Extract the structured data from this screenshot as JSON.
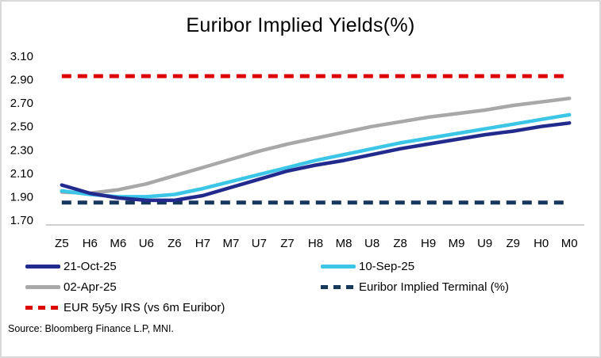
{
  "chart_data": {
    "type": "line",
    "title": "Euribor Implied Yields(%)",
    "xlabel": "",
    "ylabel": "",
    "ylim": [
      1.7,
      3.1
    ],
    "y_ticks": [
      "3.10",
      "2.90",
      "2.70",
      "2.50",
      "2.30",
      "2.10",
      "1.90",
      "1.70"
    ],
    "x_categories": [
      "Z5",
      "H6",
      "M6",
      "U6",
      "Z6",
      "H7",
      "M7",
      "U7",
      "Z7",
      "H8",
      "M8",
      "U8",
      "Z8",
      "H9",
      "M9",
      "U9",
      "Z9",
      "H0",
      "M0"
    ],
    "grid": false,
    "legend_position": "bottom",
    "series": [
      {
        "name": "21-Oct-25",
        "color": "#222B8D",
        "style": "solid",
        "values": [
          2.0,
          1.93,
          1.89,
          1.87,
          1.87,
          1.91,
          1.98,
          2.05,
          2.12,
          2.17,
          2.21,
          2.26,
          2.31,
          2.35,
          2.39,
          2.43,
          2.46,
          2.5,
          2.53
        ]
      },
      {
        "name": "10-Sep-25",
        "color": "#3BC6E8",
        "style": "solid",
        "values": [
          1.95,
          1.92,
          1.9,
          1.9,
          1.92,
          1.97,
          2.03,
          2.09,
          2.15,
          2.21,
          2.26,
          2.31,
          2.36,
          2.4,
          2.44,
          2.48,
          2.52,
          2.56,
          2.6
        ]
      },
      {
        "name": "02-Apr-25",
        "color": "#A8A8A8",
        "style": "solid",
        "values": [
          1.94,
          1.93,
          1.96,
          2.01,
          2.08,
          2.15,
          2.22,
          2.29,
          2.35,
          2.4,
          2.45,
          2.5,
          2.54,
          2.58,
          2.61,
          2.64,
          2.68,
          2.71,
          2.74
        ]
      },
      {
        "name": "Euribor Implied Terminal (%)",
        "color": "#17375E",
        "style": "dashed",
        "values": [
          1.85,
          1.85,
          1.85,
          1.85,
          1.85,
          1.85,
          1.85,
          1.85,
          1.85,
          1.85,
          1.85,
          1.85,
          1.85,
          1.85,
          1.85,
          1.85,
          1.85,
          1.85,
          1.85
        ]
      },
      {
        "name": "EUR 5y5y IRS (vs 6m Euribor)",
        "color": "#DD0000",
        "style": "dashed",
        "values": [
          2.93,
          2.93,
          2.93,
          2.93,
          2.93,
          2.93,
          2.93,
          2.93,
          2.93,
          2.93,
          2.93,
          2.93,
          2.93,
          2.93,
          2.93,
          2.93,
          2.93,
          2.93,
          2.93
        ]
      }
    ],
    "draw_order": [
      2,
      3,
      4,
      1,
      0
    ]
  },
  "source": "Source: Bloomberg Finance L.P, MNI.",
  "colors": {
    "figure_border": "#D9D9D9",
    "axis_line": "#BFBFBF",
    "text": "#000000"
  }
}
